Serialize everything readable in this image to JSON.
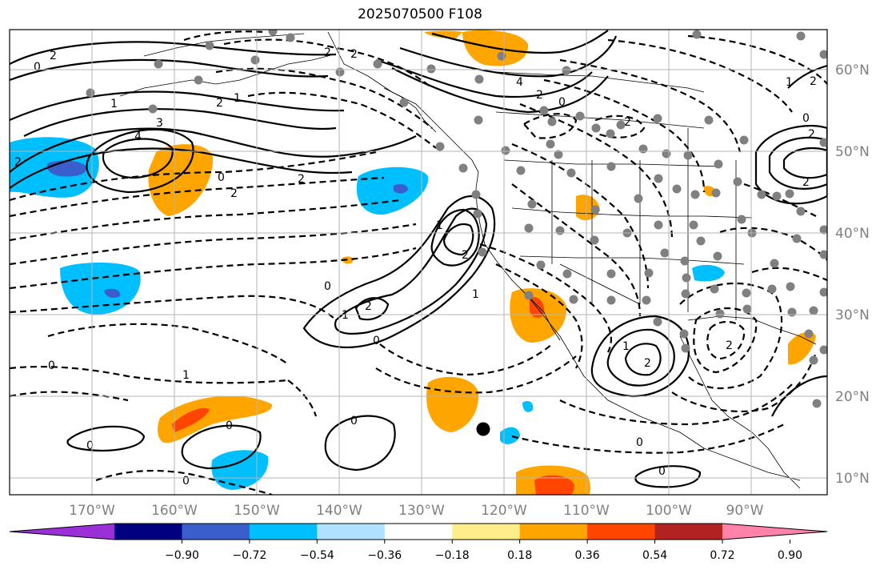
{
  "title": "2025070500 F108",
  "lon_labels": [
    "170°W",
    "160°W",
    "150°W",
    "140°W",
    "130°W",
    "120°W",
    "110°W",
    "100°W",
    "90°W"
  ],
  "lat_labels": [
    "60°N",
    "50°N",
    "40°N",
    "30°N",
    "20°N",
    "10°N"
  ],
  "colorbar": {
    "ticks": [
      "−0.90",
      "−0.72",
      "−0.54",
      "−0.36",
      "−0.18",
      "0.18",
      "0.36",
      "0.54",
      "0.72",
      "0.90"
    ],
    "colors": [
      "#9b30d9",
      "#000080",
      "#3a5fcd",
      "#00bfff",
      "#b0e2ff",
      "#ffffff",
      "#ffec8b",
      "#ffa500",
      "#ff4500",
      "#b22222",
      "#ff82ab"
    ]
  },
  "contour_labels": [
    "0",
    "2",
    "3",
    "4",
    "1",
    "2",
    "1",
    "2",
    "0",
    "2",
    "4",
    "2",
    "0",
    "2",
    "2",
    "1",
    "2",
    "2",
    "1",
    "0",
    "0",
    "2",
    "1",
    "0",
    "0",
    "0",
    "0",
    "1",
    "1",
    "0",
    "0",
    "2",
    "2",
    "2",
    "2",
    "2",
    "0",
    "0",
    "1",
    "2"
  ],
  "station_marker": "black-dot"
}
